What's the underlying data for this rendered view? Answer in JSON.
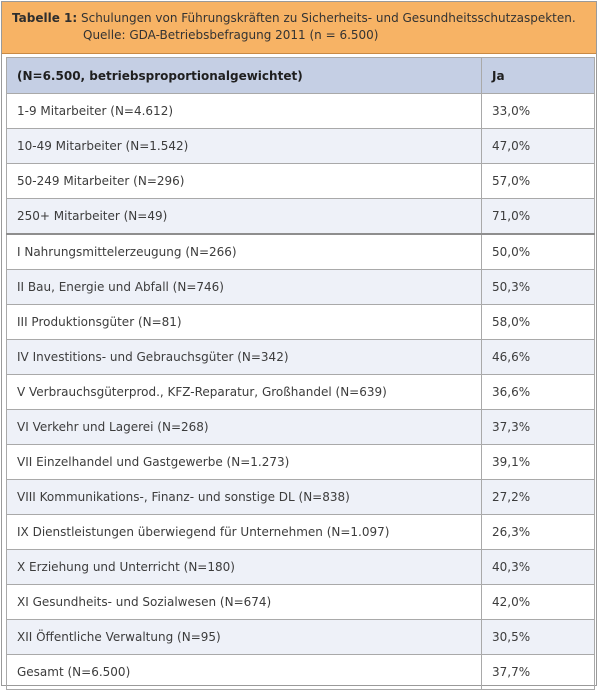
{
  "caption": {
    "label": "Tabelle 1:",
    "title": "Schulungen von Führungskräften zu Sicherheits- und Gesundheitsschutzaspekten.",
    "source": "Quelle: GDA-Betriebsbefragung 2011 (n = 6.500)"
  },
  "table": {
    "headers": [
      "(N=6.500, betriebsproportionalgewichtet)",
      "Ja"
    ],
    "rows": [
      {
        "label": "1-9 Mitarbeiter (N=4.612)",
        "value": "33,0%"
      },
      {
        "label": "10-49 Mitarbeiter (N=1.542)",
        "value": "47,0%"
      },
      {
        "label": "50-249 Mitarbeiter (N=296)",
        "value": "57,0%"
      },
      {
        "label": "250+ Mitarbeiter (N=49)",
        "value": "71,0%"
      },
      {
        "label": "I Nahrungsmittelerzeugung (N=266)",
        "value": "50,0%"
      },
      {
        "label": "II Bau, Energie und Abfall (N=746)",
        "value": "50,3%"
      },
      {
        "label": "III Produktionsgüter (N=81)",
        "value": "58,0%"
      },
      {
        "label": "IV Investitions- und Gebrauchsgüter (N=342)",
        "value": "46,6%"
      },
      {
        "label": "V Verbrauchsgüterprod., KFZ-Reparatur, Großhandel (N=639)",
        "value": "36,6%"
      },
      {
        "label": "VI Verkehr und Lagerei (N=268)",
        "value": "37,3%"
      },
      {
        "label": "VII Einzelhandel und Gastgewerbe (N=1.273)",
        "value": "39,1%"
      },
      {
        "label": "VIII Kommunikations-, Finanz- und sonstige DL (N=838)",
        "value": "27,2%"
      },
      {
        "label": "IX Dienstleistungen überwiegend für Unternehmen (N=1.097)",
        "value": "26,3%"
      },
      {
        "label": "X Erziehung und Unterricht (N=180)",
        "value": "40,3%"
      },
      {
        "label": "XI Gesundheits- und Sozialwesen (N=674)",
        "value": "42,0%"
      },
      {
        "label": "XII Öffentliche Verwaltung (N=95)",
        "value": "30,5%"
      },
      {
        "label": "Gesamt (N=6.500)",
        "value": "37,7%"
      }
    ]
  }
}
